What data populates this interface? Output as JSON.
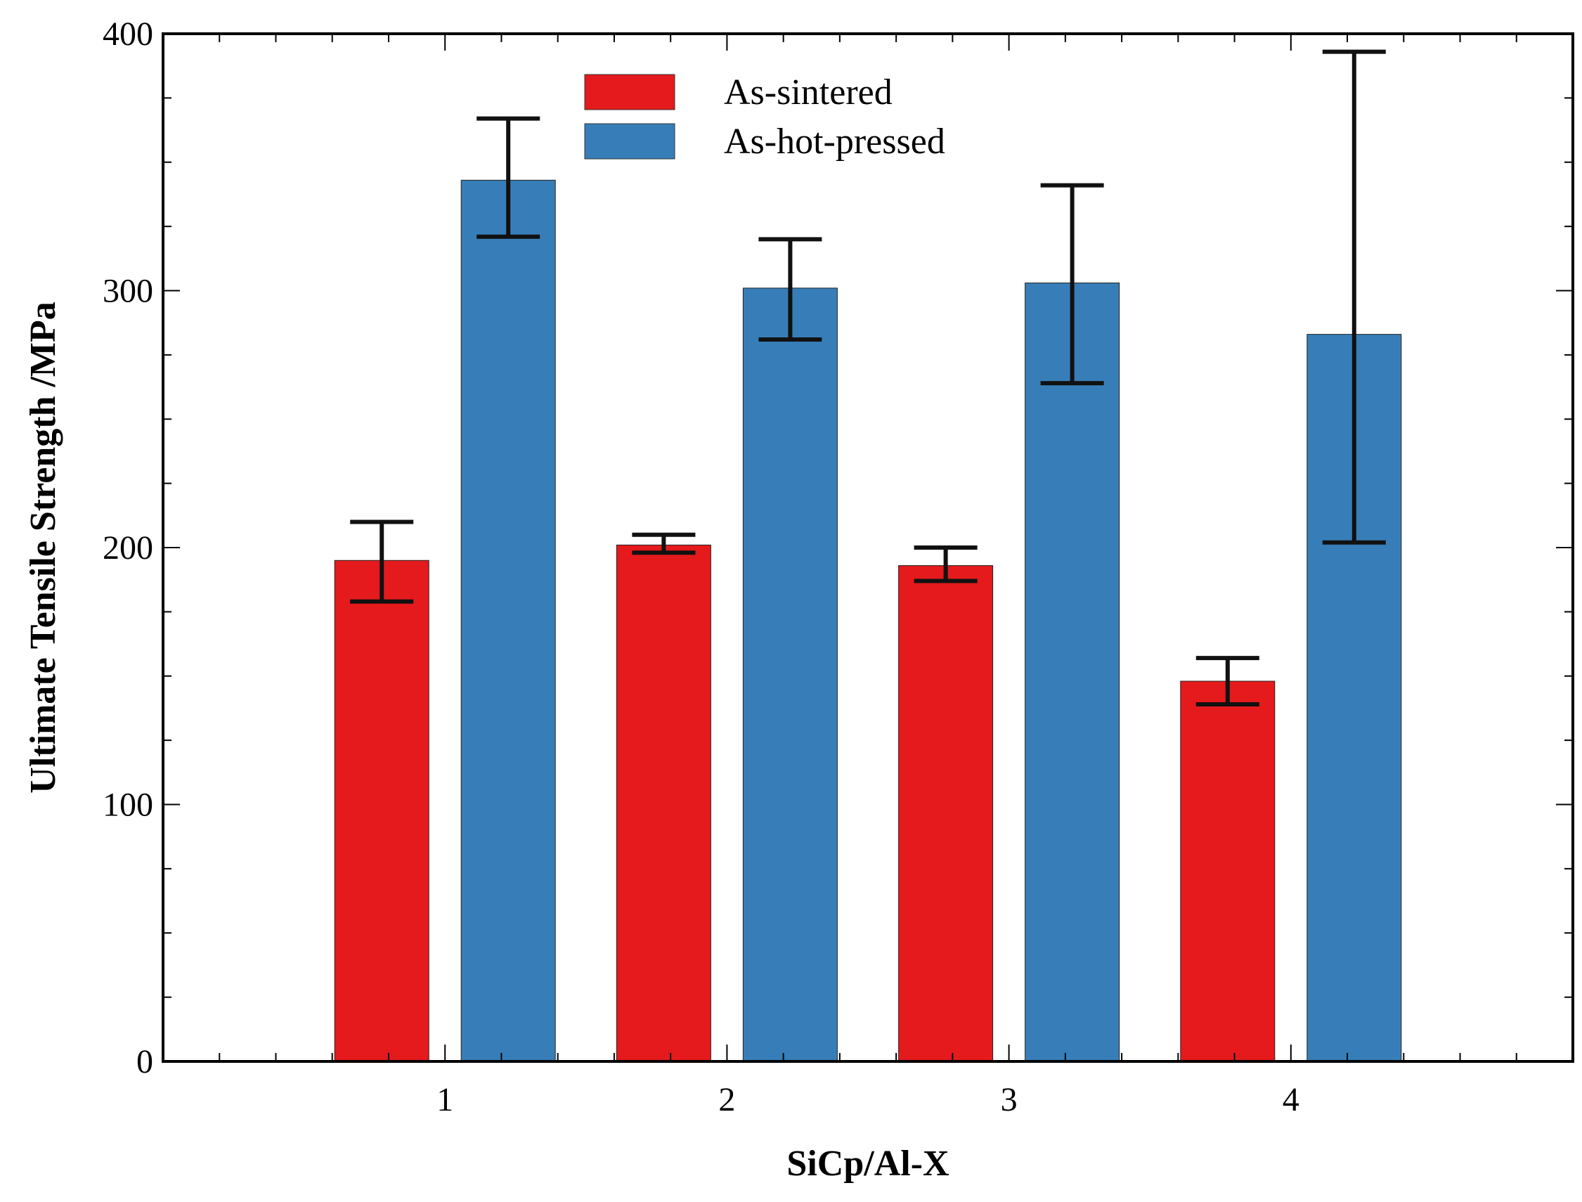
{
  "chart_data": {
    "type": "bar",
    "title": "",
    "xlabel": "SiCp/Al-X",
    "ylabel": "Ultimate Tensile Strength /MPa",
    "categories": [
      "1",
      "2",
      "3",
      "4"
    ],
    "ylim": [
      0,
      400
    ],
    "xlim": [
      0,
      5
    ],
    "yticks": [
      "0",
      "100",
      "200",
      "300",
      "400"
    ],
    "grid": false,
    "legend_position": "top-center",
    "series": [
      {
        "name": "As-sintered",
        "color": "#e41a1c",
        "values": [
          195,
          201,
          193,
          148
        ],
        "error_low": [
          179,
          198,
          187,
          139
        ],
        "error_high": [
          210,
          205,
          200,
          157
        ]
      },
      {
        "name": "As-hot-pressed",
        "color": "#377eb8",
        "values": [
          343,
          301,
          303,
          283
        ],
        "error_low": [
          321,
          281,
          264,
          202
        ],
        "error_high": [
          367,
          320,
          341,
          393
        ]
      }
    ]
  }
}
